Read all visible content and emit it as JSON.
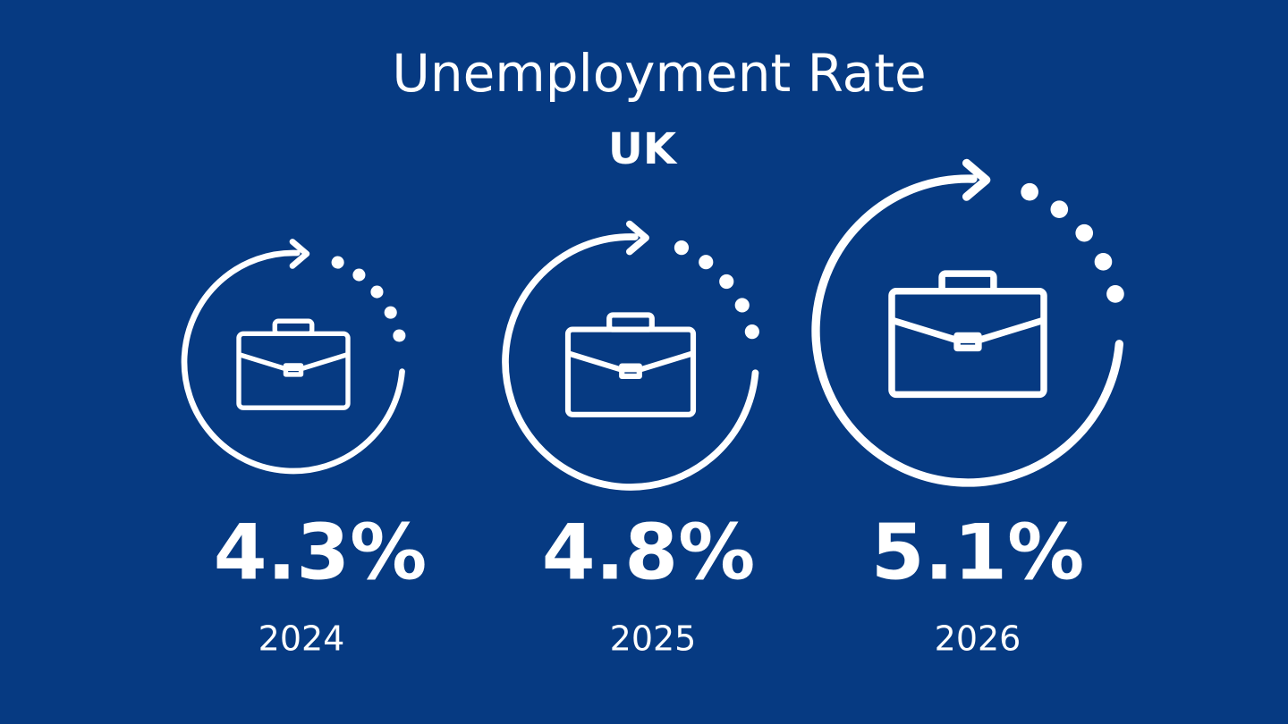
{
  "title": "Unemployment Rate",
  "subtitle": "UK",
  "items": [
    {
      "value": "4.3%",
      "year": "2024"
    },
    {
      "value": "4.8%",
      "year": "2025"
    },
    {
      "value": "5.1%",
      "year": "2026"
    }
  ]
}
